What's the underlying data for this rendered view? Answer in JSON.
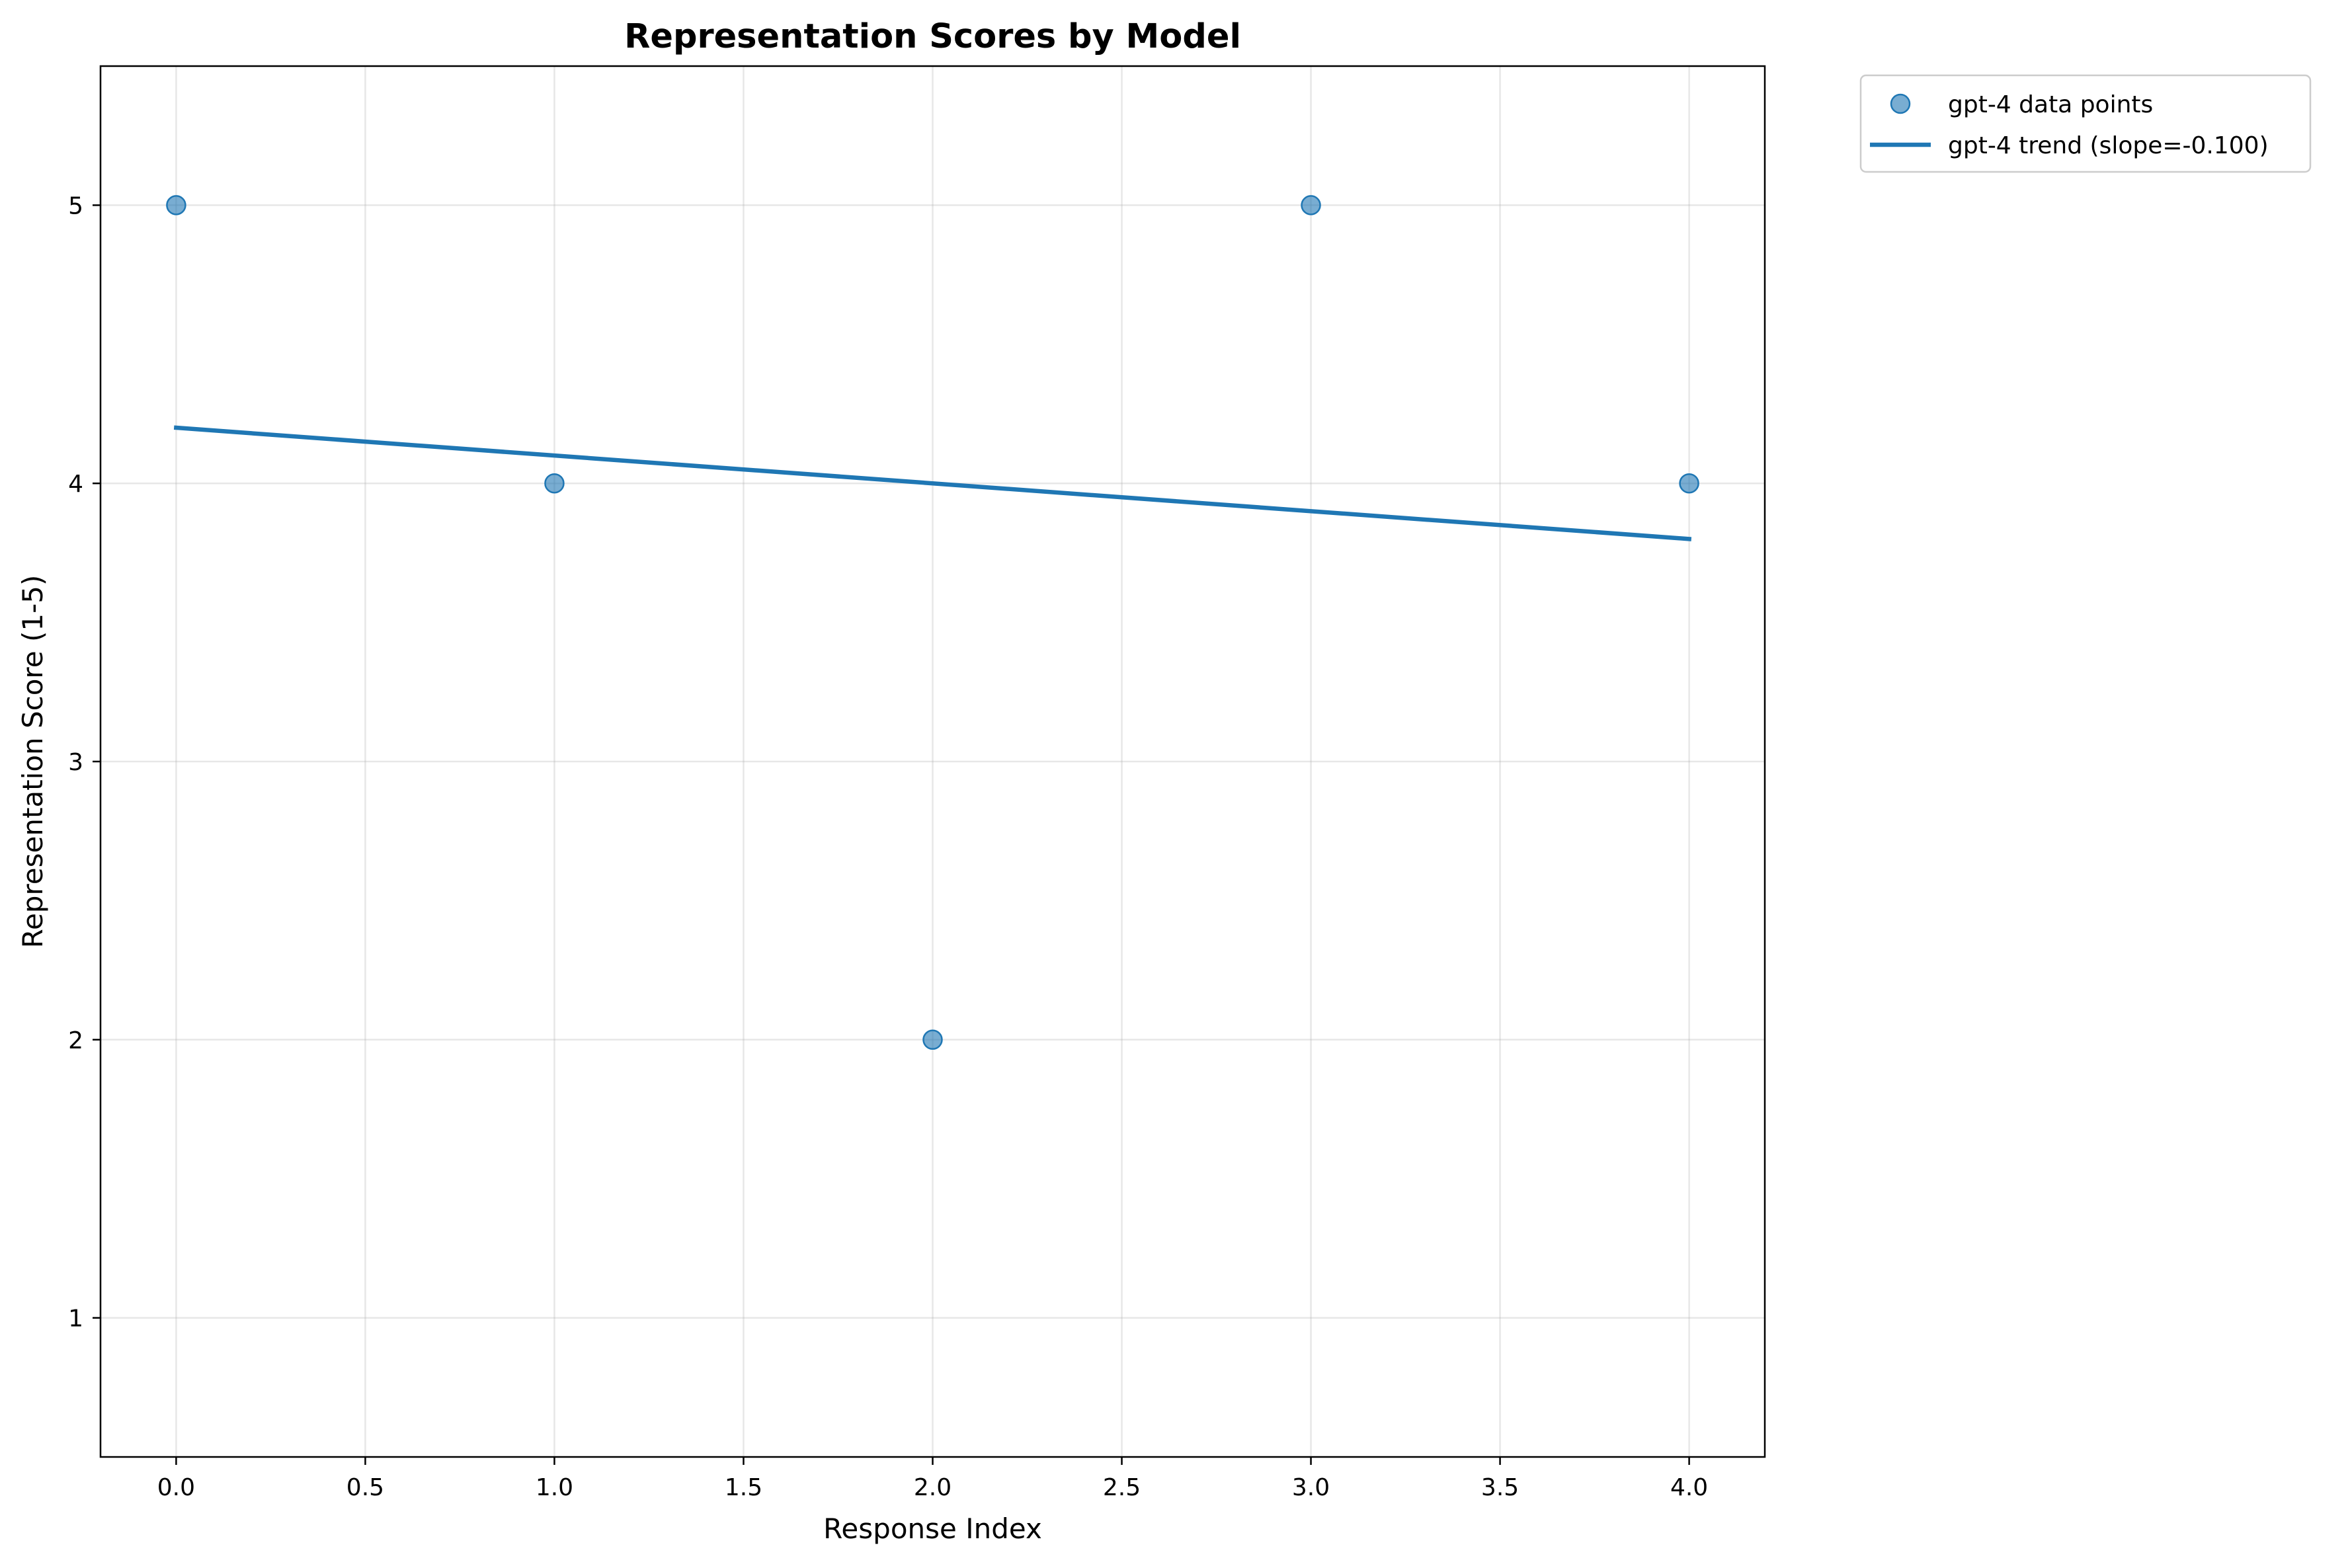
{
  "chart_data": {
    "type": "scatter",
    "title": "Representation Scores by Model",
    "xlabel": "Response Index",
    "ylabel": "Representation Score (1-5)",
    "xlim": [
      -0.2,
      4.2
    ],
    "ylim": [
      0.5,
      5.5
    ],
    "x_ticks": [
      0.0,
      0.5,
      1.0,
      1.5,
      2.0,
      2.5,
      3.0,
      3.5,
      4.0
    ],
    "x_tick_labels": [
      "0.0",
      "0.5",
      "1.0",
      "1.5",
      "2.0",
      "2.5",
      "3.0",
      "3.5",
      "4.0"
    ],
    "y_ticks": [
      1,
      2,
      3,
      4,
      5
    ],
    "y_tick_labels": [
      "1",
      "2",
      "3",
      "4",
      "5"
    ],
    "grid": true,
    "legend_position": "outside upper-right",
    "series": [
      {
        "name": "gpt-4 data points",
        "kind": "scatter",
        "color": "#1f77b4",
        "x": [
          0,
          1,
          2,
          3,
          4
        ],
        "y": [
          5,
          4,
          2,
          5,
          4
        ]
      },
      {
        "name": "gpt-4 trend (slope=-0.100)",
        "kind": "line",
        "color": "#1f77b4",
        "x": [
          0,
          4
        ],
        "y": [
          4.2,
          3.8
        ]
      }
    ]
  }
}
